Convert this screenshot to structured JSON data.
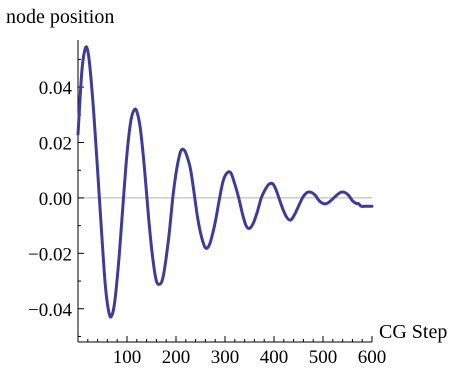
{
  "chart_data": {
    "type": "line",
    "xlabel": "CG Step",
    "ylabel": "node position",
    "xlim": [
      0,
      600
    ],
    "ylim": [
      -0.052,
      0.057
    ],
    "x_ticks": [
      100,
      200,
      300,
      400,
      500,
      600
    ],
    "x_tick_labels": [
      "100",
      "200",
      "300",
      "400",
      "500",
      "600"
    ],
    "y_ticks": [
      0.04,
      0.02,
      0.0,
      -0.02,
      -0.04
    ],
    "y_tick_labels": [
      "0.04",
      "0.02",
      "0.00",
      "−0.02",
      "−0.04"
    ],
    "grid": false,
    "legend": "none",
    "line_color": "#3d3d99",
    "axis_color": "#000000",
    "zero_line_color": "#b0b0b0",
    "series": [
      {
        "x": [
          0,
          8,
          15,
          20,
          25,
          32,
          40,
          48,
          56,
          64,
          70,
          76,
          84,
          92,
          100,
          108,
          116,
          122,
          128,
          136,
          144,
          152,
          160,
          168,
          173,
          178,
          186,
          194,
          202,
          210,
          218,
          226,
          230,
          236,
          244,
          252,
          260,
          268,
          276,
          282,
          288,
          296,
          304,
          312,
          320,
          328,
          336,
          343,
          350,
          358,
          366,
          374,
          382,
          390,
          398,
          404,
          410,
          418,
          426,
          434,
          442,
          450,
          458,
          462,
          468,
          476,
          484,
          492,
          500,
          508,
          516,
          522,
          528,
          536,
          544,
          552,
          560,
          568,
          572,
          578,
          586,
          594,
          600
        ],
        "y": [
          0.023,
          0.046,
          0.054,
          0.053,
          0.046,
          0.031,
          0.01,
          -0.012,
          -0.032,
          -0.042,
          -0.042,
          -0.036,
          -0.021,
          -0.002,
          0.016,
          0.028,
          0.032,
          0.03,
          0.024,
          0.01,
          -0.007,
          -0.021,
          -0.03,
          -0.031,
          -0.029,
          -0.024,
          -0.013,
          0.001,
          0.011,
          0.017,
          0.017,
          0.013,
          0.01,
          0.003,
          -0.007,
          -0.014,
          -0.018,
          -0.017,
          -0.012,
          -0.007,
          -0.001,
          0.006,
          0.009,
          0.009,
          0.005,
          0.0,
          -0.006,
          -0.01,
          -0.011,
          -0.009,
          -0.005,
          0.0,
          0.003,
          0.005,
          0.005,
          0.003,
          0.0,
          -0.004,
          -0.007,
          -0.008,
          -0.006,
          -0.003,
          0.0,
          0.001,
          0.002,
          0.002,
          0.001,
          -0.001,
          -0.002,
          -0.002,
          -0.001,
          0.0,
          0.001,
          0.002,
          0.002,
          0.001,
          -0.001,
          -0.002,
          -0.002,
          -0.003,
          -0.003,
          -0.003,
          -0.003
        ]
      }
    ]
  }
}
